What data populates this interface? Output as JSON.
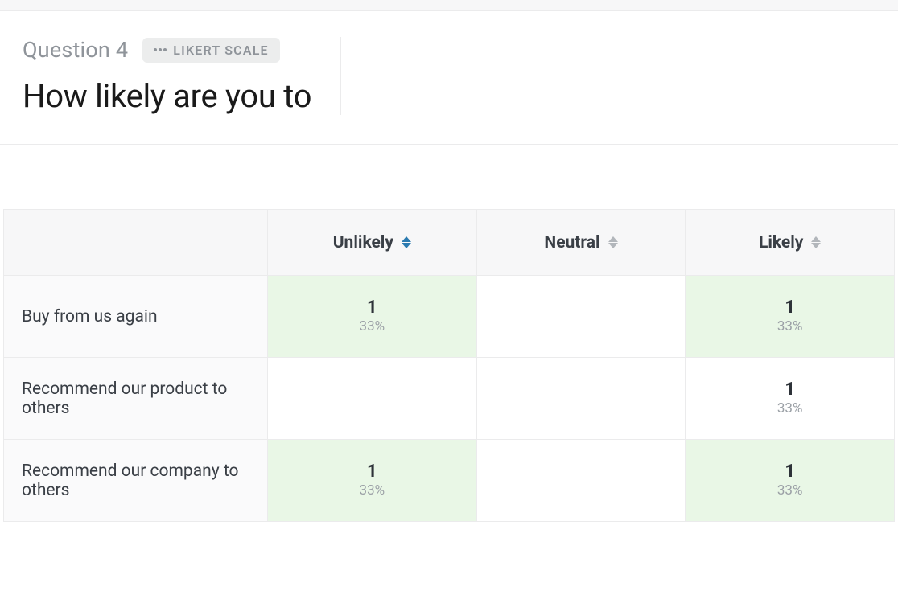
{
  "header": {
    "question_label": "Question 4",
    "type_label": "LIKERT SCALE",
    "question_text": "How likely are you to"
  },
  "colors": {
    "highlight_bg": "#e9f7e6",
    "row_label_bg": "#fafafb",
    "header_bg": "#f7f7f8",
    "border": "#ebebec",
    "muted_text": "#8f949a",
    "active_sort": "#2a7ab0"
  },
  "table": {
    "columns": [
      {
        "label": "Unlikely",
        "sort_active": true
      },
      {
        "label": "Neutral",
        "sort_active": false
      },
      {
        "label": "Likely",
        "sort_active": false
      }
    ],
    "rows": [
      {
        "label": "Buy from us again",
        "cells": [
          {
            "count": "1",
            "pct": "33%",
            "highlight": true
          },
          {
            "count": "",
            "pct": "",
            "highlight": false
          },
          {
            "count": "1",
            "pct": "33%",
            "highlight": true
          }
        ]
      },
      {
        "label": "Recommend our product to others",
        "cells": [
          {
            "count": "",
            "pct": "",
            "highlight": false
          },
          {
            "count": "",
            "pct": "",
            "highlight": false
          },
          {
            "count": "1",
            "pct": "33%",
            "highlight": false
          }
        ]
      },
      {
        "label": "Recommend our company to others",
        "cells": [
          {
            "count": "1",
            "pct": "33%",
            "highlight": true
          },
          {
            "count": "",
            "pct": "",
            "highlight": false
          },
          {
            "count": "1",
            "pct": "33%",
            "highlight": true
          }
        ]
      }
    ]
  }
}
